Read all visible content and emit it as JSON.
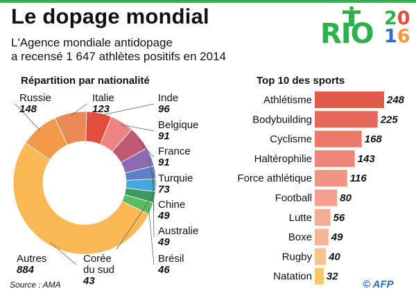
{
  "header": {
    "title": "Le dopage mondial",
    "subtitle_line1": "L'Agence mondiale antidopage",
    "subtitle_line2": "a recensé 1 647 athlètes positifs en 2014"
  },
  "logo": {
    "rio": "RIO",
    "year_top": "20",
    "year_bottom": "16"
  },
  "footer": {
    "source": "Source : AMA",
    "credit": "© AFP"
  },
  "chart_data": [
    {
      "type": "pie",
      "title": "Répartition par nationalité",
      "slices": [
        {
          "label": "Russie",
          "value": 148,
          "color": "#f2994a"
        },
        {
          "label": "Italie",
          "value": 123,
          "color": "#ea8a55"
        },
        {
          "label": "Inde",
          "value": 96,
          "color": "#e24e3b"
        },
        {
          "label": "Belgique",
          "value": 91,
          "color": "#ec8484"
        },
        {
          "label": "France",
          "value": 91,
          "color": "#c05a74"
        },
        {
          "label": "Turquie",
          "value": 73,
          "color": "#8b6bb1"
        },
        {
          "label": "Chine",
          "value": 49,
          "color": "#5d7fc9"
        },
        {
          "label": "Australie",
          "value": 49,
          "color": "#46a7de"
        },
        {
          "label": "Corée du sud",
          "value": 43,
          "color": "#3c9a5f"
        },
        {
          "label": "Brésil",
          "value": 46,
          "color": "#5dbb63"
        },
        {
          "label": "Autres",
          "value": 884,
          "color": "#fbb955"
        }
      ]
    },
    {
      "type": "bar",
      "orientation": "horizontal",
      "title": "Top 10 des sports",
      "categories": [
        "Athlétisme",
        "Bodybuilding",
        "Cyclisme",
        "Haltérophilie",
        "Force athlétique",
        "Football",
        "Lutte",
        "Boxe",
        "Rugby",
        "Natation"
      ],
      "values": [
        248,
        225,
        168,
        143,
        116,
        80,
        56,
        49,
        40,
        32
      ],
      "colors": [
        "#e05a48",
        "#e7685a",
        "#ec7a6b",
        "#ee8677",
        "#f09484",
        "#f3a18e",
        "#f5ac92",
        "#f6b695",
        "#f8c38e",
        "#f9c767"
      ]
    }
  ]
}
